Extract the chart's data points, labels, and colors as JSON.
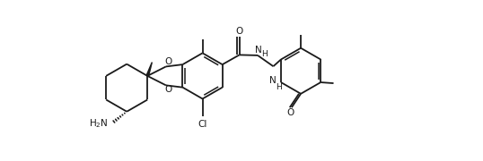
{
  "bg_color": "#ffffff",
  "line_color": "#1a1a1a",
  "lw": 1.3,
  "figsize": [
    5.38,
    1.8
  ],
  "dpi": 100,
  "xlim": [
    0,
    10.5
  ],
  "ylim": [
    0.2,
    3.6
  ]
}
